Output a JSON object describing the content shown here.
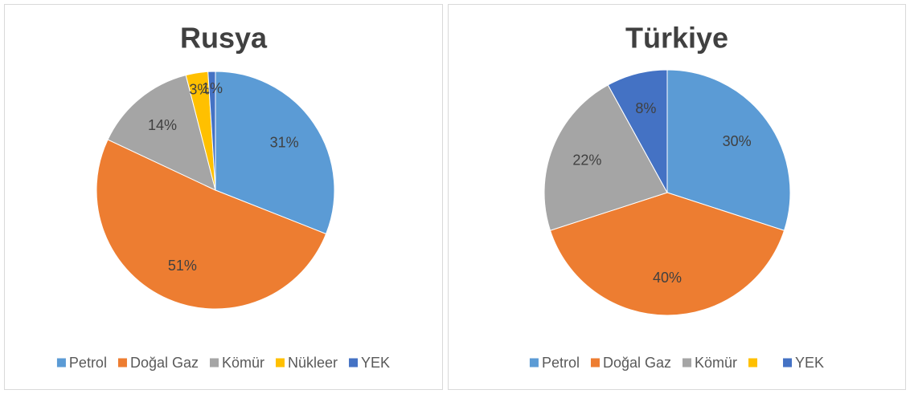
{
  "chart_data": [
    {
      "type": "pie",
      "title": "Rusya",
      "categories": [
        "Petrol",
        "Doğal Gaz",
        "Kömür",
        "Nükleer",
        "YEK"
      ],
      "values": [
        31,
        51,
        14,
        3,
        1
      ],
      "value_labels": [
        "31%",
        "51%",
        "14%",
        "3%",
        "1%"
      ],
      "colors": [
        "#5b9bd5",
        "#ed7d31",
        "#a5a5a5",
        "#ffc000",
        "#4472c4"
      ],
      "legend": "bottom"
    },
    {
      "type": "pie",
      "title": "Türkiye",
      "categories": [
        "Petrol",
        "Doğal Gaz",
        "Kömür",
        null,
        "YEK"
      ],
      "values": [
        30,
        40,
        22,
        0,
        8
      ],
      "value_labels": [
        "30%",
        "40%",
        "22%",
        null,
        "8%"
      ],
      "colors": [
        "#5b9bd5",
        "#ed7d31",
        "#a5a5a5",
        "#ffc000",
        "#4472c4"
      ],
      "legend": "bottom"
    }
  ]
}
